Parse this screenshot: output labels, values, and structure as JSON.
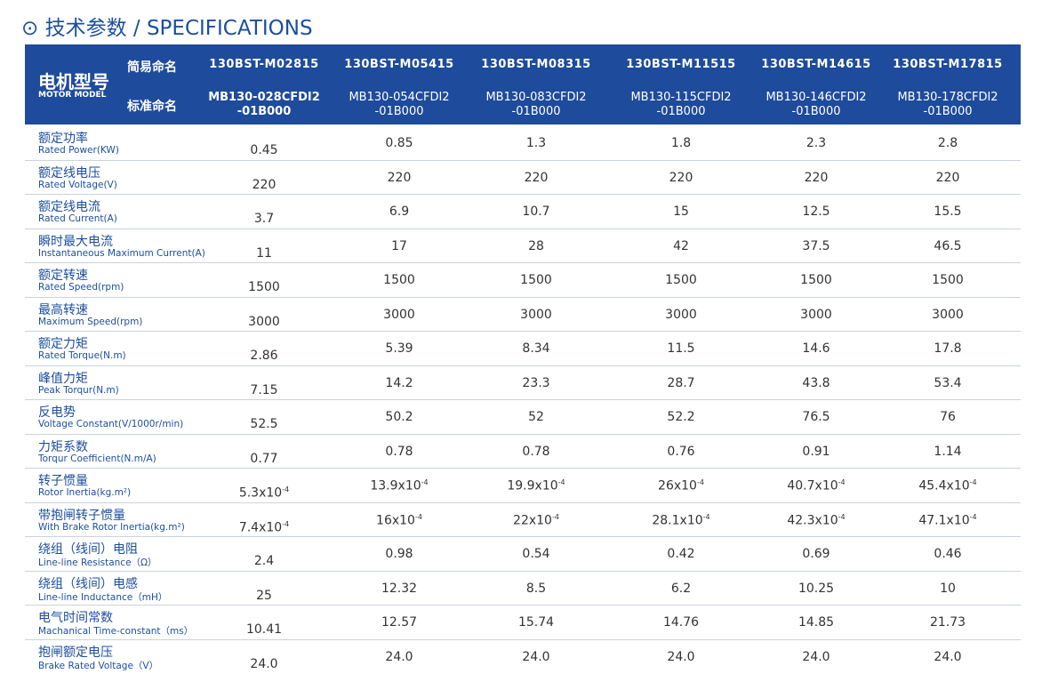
{
  "title": "⊙ 技术参数 / SPECIFICATIONS",
  "header": {
    "model_cn": "电机型号",
    "model_en": "MOTOR MODEL",
    "simple_label": "简易命名",
    "standard_label": "标准命名",
    "simple_names": [
      "130BST-M02815",
      "130BST-M05415",
      "130BST-M08315",
      "130BST-M11515",
      "130BST-M14615",
      "130BST-M17815"
    ],
    "standard_names": [
      [
        "MB130-028CFDI2",
        "-01B000"
      ],
      [
        "MB130-054CFDI2",
        "-01B000"
      ],
      [
        "MB130-083CFDI2",
        "-01B000"
      ],
      [
        "MB130-115CFDI2",
        "-01B000"
      ],
      [
        "MB130-146CFDI2",
        "-01B000"
      ],
      [
        "MB130-178CFDI2",
        "-01B000"
      ]
    ]
  },
  "rows": [
    {
      "cn": "额定功率",
      "en": "Rated Power(KW)",
      "values": [
        "0.45",
        "0.85",
        "1.3",
        "1.8",
        "2.3",
        "2.8"
      ]
    },
    {
      "cn": "额定线电压",
      "en": "Rated Voltage(V)",
      "values": [
        "220",
        "220",
        "220",
        "220",
        "220",
        "220"
      ]
    },
    {
      "cn": "额定线电流",
      "en": "Rated Current(A)",
      "values": [
        "3.7",
        "6.9",
        "10.7",
        "15",
        "12.5",
        "15.5"
      ]
    },
    {
      "cn": "瞬时最大电流",
      "en": "Instantaneous Maximum Current(A)",
      "values": [
        "11",
        "17",
        "28",
        "42",
        "37.5",
        "46.5"
      ]
    },
    {
      "cn": "额定转速",
      "en": "Rated Speed(rpm)",
      "values": [
        "1500",
        "1500",
        "1500",
        "1500",
        "1500",
        "1500"
      ]
    },
    {
      "cn": "最高转速",
      "en": "Maximum Speed(rpm)",
      "values": [
        "3000",
        "3000",
        "3000",
        "3000",
        "3000",
        "3000"
      ]
    },
    {
      "cn": "额定力矩",
      "en": "Rated Torque(N.m)",
      "values": [
        "2.86",
        "5.39",
        "8.34",
        "11.5",
        "14.6",
        "17.8"
      ]
    },
    {
      "cn": "峰值力矩",
      "en": "Peak Torqur(N.m)",
      "values": [
        "7.15",
        "14.2",
        "23.3",
        "28.7",
        "43.8",
        "53.4"
      ]
    },
    {
      "cn": "反电势",
      "en": "Voltage Constant(V/1000r/min)",
      "values": [
        "52.5",
        "50.2",
        "52",
        "52.2",
        "76.5",
        "76"
      ]
    },
    {
      "cn": "力矩系数",
      "en": "Torqur Coefficient(N.m/A)",
      "values": [
        "0.77",
        "0.78",
        "0.78",
        "0.76",
        "0.91",
        "1.14"
      ]
    },
    {
      "cn": "转子惯量",
      "en": "Rotor Inertia(kg.m²)",
      "values": [
        {
          "text": "5.3x10",
          "sup": "-4"
        },
        {
          "text": "13.9x10",
          "sup": "-4"
        },
        {
          "text": "19.9x10",
          "sup": "-4"
        },
        {
          "text": "26x10",
          "sup": "-4"
        },
        {
          "text": "40.7x10",
          "sup": "-4"
        },
        {
          "text": "45.4x10",
          "sup": "-4"
        }
      ]
    },
    {
      "cn": "带抱闸转子惯量",
      "en": "With Brake Rotor Inertia(kg.m²)",
      "values": [
        {
          "text": "7.4x10",
          "sup": "-4"
        },
        {
          "text": "16x10",
          "sup": "-4"
        },
        {
          "text": "22x10",
          "sup": "-4"
        },
        {
          "text": "28.1x10",
          "sup": "-4"
        },
        {
          "text": "42.3x10",
          "sup": "-4"
        },
        {
          "text": "47.1x10",
          "sup": "-4"
        }
      ]
    },
    {
      "cn": "绕组（线间）电阻",
      "en": "Line-line Resistance（Ω）",
      "values": [
        "2.4",
        "0.98",
        "0.54",
        "0.42",
        "0.69",
        "0.46"
      ]
    },
    {
      "cn": "绕组（线间）电感",
      "en": "Line-line Inductance（mH）",
      "values": [
        "25",
        "12.32",
        "8.5",
        "6.2",
        "10.25",
        "10"
      ]
    },
    {
      "cn": "电气时间常数",
      "en": "Machanical Time-constant（ms）",
      "values": [
        "10.41",
        "12.57",
        "15.74",
        "14.76",
        "14.85",
        "21.73"
      ]
    },
    {
      "cn": "抱闸额定电压",
      "en": "Brake Rated Voltage（V）",
      "values": [
        "24.0",
        "24.0",
        "24.0",
        "24.0",
        "24.0",
        "24.0"
      ]
    }
  ]
}
